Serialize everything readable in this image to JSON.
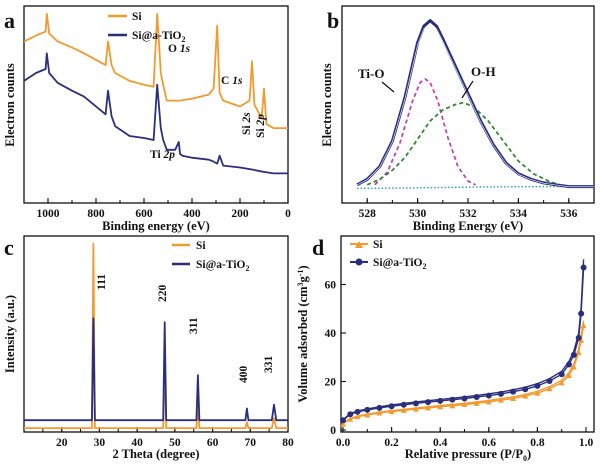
{
  "colors": {
    "si": "#F39A2E",
    "sitio2": "#2B2E7E",
    "fit_dark": "#2B2E7E",
    "tio": "#C040C0",
    "oh": "#2E8B2E",
    "bg": "#2E9E9E"
  },
  "chart_data": [
    {
      "panel": "a",
      "type": "line",
      "xlabel": "Binding energy (eV)",
      "ylabel": "Electron counts",
      "xlim": [
        1100,
        0
      ],
      "x_reversed": true,
      "xticks": [
        "1000",
        "800",
        "600",
        "400",
        "200",
        "0"
      ],
      "series": [
        {
          "name": "Si",
          "color": "#F39A2E",
          "x": [
            1100,
            1050,
            1010,
            1005,
            995,
            960,
            900,
            850,
            790,
            760,
            750,
            735,
            720,
            660,
            600,
            560,
            545,
            530,
            520,
            505,
            450,
            400,
            330,
            310,
            295,
            285,
            270,
            200,
            160,
            150,
            140,
            110,
            100,
            90,
            60,
            20,
            0
          ],
          "y": [
            0.82,
            0.85,
            0.87,
            0.96,
            0.86,
            0.82,
            0.79,
            0.76,
            0.72,
            0.7,
            0.82,
            0.7,
            0.66,
            0.62,
            0.6,
            0.59,
            0.96,
            0.66,
            0.6,
            0.52,
            0.52,
            0.53,
            0.55,
            0.58,
            0.9,
            0.56,
            0.52,
            0.49,
            0.52,
            0.72,
            0.5,
            0.43,
            0.58,
            0.4,
            0.38,
            0.38,
            0.38
          ]
        },
        {
          "name": "Si@a-TiO2",
          "color": "#2B2E7E",
          "x": [
            1100,
            1050,
            1010,
            1005,
            995,
            960,
            900,
            850,
            790,
            760,
            750,
            735,
            720,
            660,
            600,
            560,
            545,
            530,
            520,
            505,
            470,
            455,
            450,
            440,
            400,
            330,
            310,
            295,
            285,
            270,
            200,
            150,
            110,
            60,
            20,
            0
          ],
          "y": [
            0.62,
            0.66,
            0.68,
            0.76,
            0.66,
            0.61,
            0.57,
            0.54,
            0.48,
            0.45,
            0.57,
            0.44,
            0.39,
            0.34,
            0.33,
            0.32,
            0.6,
            0.38,
            0.32,
            0.27,
            0.27,
            0.31,
            0.25,
            0.24,
            0.23,
            0.22,
            0.21,
            0.2,
            0.24,
            0.19,
            0.18,
            0.17,
            0.16,
            0.15,
            0.15,
            0.15
          ]
        }
      ],
      "legend": {
        "position": "top-left",
        "entries": [
          "Si",
          "Si@a-TiO2"
        ]
      },
      "annotations": [
        "O 1s",
        "C 1s",
        "Si 2s",
        "Si 2p",
        "Ti 2p"
      ]
    },
    {
      "panel": "b",
      "type": "line",
      "xlabel": "Binding Energy (eV)",
      "ylabel": "Electron counts",
      "xlim": [
        527,
        537
      ],
      "xticks": [
        "528",
        "530",
        "532",
        "534",
        "536"
      ],
      "series": [
        {
          "name": "",
          "role": "measured + fit envelope",
          "color": "#2B2E7E",
          "x": [
            527.6,
            528.0,
            528.5,
            529.0,
            529.5,
            530.0,
            530.25,
            530.5,
            530.75,
            531.0,
            531.5,
            532.0,
            532.5,
            533.0,
            533.5,
            534.0,
            534.5,
            535.0,
            535.5,
            536.0,
            536.5,
            537.0
          ],
          "y": [
            0.1,
            0.13,
            0.2,
            0.34,
            0.58,
            0.88,
            0.97,
            1.0,
            0.97,
            0.9,
            0.75,
            0.6,
            0.45,
            0.32,
            0.22,
            0.16,
            0.13,
            0.11,
            0.1,
            0.09,
            0.09,
            0.09
          ]
        },
        {
          "name": "Ti-O",
          "role": "fitted component",
          "color": "#C040C0",
          "x": [
            528.3,
            528.8,
            529.3,
            529.8,
            530.1,
            530.3,
            530.5,
            530.8,
            531.2,
            531.6,
            532.0,
            532.3
          ],
          "y": [
            0.1,
            0.17,
            0.33,
            0.56,
            0.66,
            0.68,
            0.66,
            0.56,
            0.36,
            0.2,
            0.12,
            0.1
          ]
        },
        {
          "name": "O-H",
          "role": "fitted component",
          "color": "#2E8B2E",
          "x": [
            528.0,
            528.5,
            529.0,
            529.5,
            530.0,
            530.5,
            531.0,
            531.5,
            531.8,
            532.2,
            532.8,
            533.4,
            534.0,
            534.6,
            535.2,
            535.6
          ],
          "y": [
            0.1,
            0.13,
            0.18,
            0.25,
            0.35,
            0.45,
            0.51,
            0.54,
            0.55,
            0.53,
            0.45,
            0.34,
            0.23,
            0.16,
            0.12,
            0.1
          ]
        },
        {
          "name": "",
          "role": "background",
          "color": "#2E9E9E",
          "x": [
            527.6,
            529.0,
            530.5,
            532.0,
            533.5,
            535.0,
            536.5,
            537.0
          ],
          "y": [
            0.08,
            0.081,
            0.084,
            0.087,
            0.089,
            0.09,
            0.091,
            0.091
          ]
        }
      ],
      "annotations": [
        "Ti-O",
        "O-H"
      ]
    },
    {
      "panel": "c",
      "type": "line",
      "xlabel": "2 Theta (degree)",
      "ylabel": "Intensity (a.u.)",
      "xlim": [
        10,
        80
      ],
      "xticks": [
        "20",
        "30",
        "40",
        "50",
        "60",
        "70",
        "80"
      ],
      "series": [
        {
          "name": "Si",
          "color": "#F39A2E",
          "x": [
            10,
            28.0,
            28.4,
            28.8,
            46.9,
            47.3,
            47.7,
            55.7,
            56.1,
            56.5,
            68.7,
            69.1,
            69.5,
            75.7,
            76.3,
            76.9,
            80
          ],
          "y": [
            0.02,
            0.02,
            0.96,
            0.02,
            0.02,
            0.38,
            0.02,
            0.02,
            0.14,
            0.02,
            0.02,
            0.05,
            0.02,
            0.02,
            0.07,
            0.02,
            0.02
          ]
        },
        {
          "name": "Si@a-TiO2",
          "color": "#2B2E7E",
          "x": [
            10,
            28.0,
            28.4,
            28.8,
            46.9,
            47.3,
            47.7,
            55.7,
            56.1,
            56.5,
            68.7,
            69.1,
            69.5,
            75.7,
            76.3,
            76.9,
            80
          ],
          "y": [
            0.06,
            0.06,
            0.58,
            0.06,
            0.06,
            0.56,
            0.06,
            0.06,
            0.29,
            0.06,
            0.06,
            0.12,
            0.06,
            0.06,
            0.14,
            0.06,
            0.06
          ]
        }
      ],
      "legend": {
        "position": "top-right",
        "entries": [
          "Si",
          "Si@a-TiO2"
        ]
      },
      "annotations": [
        "111",
        "220",
        "311",
        "400",
        "331"
      ]
    },
    {
      "panel": "d",
      "type": "line",
      "xlabel": "Relative pressure (P/P0)",
      "ylabel": "Volume adsorbed (cm³g⁻¹)",
      "xlim": [
        0,
        1.0
      ],
      "ylim": [
        0,
        80
      ],
      "xticks": [
        "0.0",
        "0.2",
        "0.4",
        "0.6",
        "0.8",
        "1.0"
      ],
      "yticks": [
        "0",
        "20",
        "40",
        "60"
      ],
      "series": [
        {
          "name": "Si",
          "color": "#F39A2E",
          "x": [
            0.0,
            0.03,
            0.06,
            0.1,
            0.15,
            0.2,
            0.25,
            0.3,
            0.35,
            0.4,
            0.45,
            0.5,
            0.55,
            0.6,
            0.65,
            0.7,
            0.75,
            0.8,
            0.85,
            0.9,
            0.93,
            0.95,
            0.97,
            0.98,
            0.99
          ],
          "y": [
            2.5,
            4.5,
            5.5,
            6.2,
            7.0,
            7.6,
            8.1,
            8.6,
            9.1,
            9.6,
            10.0,
            10.5,
            11.0,
            11.6,
            12.3,
            13.0,
            14.0,
            15.2,
            17.0,
            19.5,
            22.5,
            26.0,
            32.0,
            37.0,
            43.0
          ]
        },
        {
          "name": "Si@a-TiO2",
          "color": "#2B2E7E",
          "x": [
            0.0,
            0.03,
            0.06,
            0.1,
            0.15,
            0.2,
            0.25,
            0.3,
            0.35,
            0.4,
            0.45,
            0.5,
            0.55,
            0.6,
            0.65,
            0.7,
            0.75,
            0.8,
            0.85,
            0.9,
            0.93,
            0.95,
            0.97,
            0.98,
            0.99
          ],
          "y": [
            4.0,
            6.5,
            7.5,
            8.3,
            9.1,
            9.8,
            10.4,
            11.0,
            11.5,
            12.0,
            12.5,
            13.0,
            13.6,
            14.2,
            14.9,
            15.8,
            16.8,
            18.2,
            20.2,
            23.0,
            27.0,
            31.0,
            38.0,
            48.0,
            67.0
          ]
        }
      ],
      "legend": {
        "position": "top-left",
        "entries": [
          "Si",
          "Si@a-TiO2"
        ]
      }
    }
  ]
}
